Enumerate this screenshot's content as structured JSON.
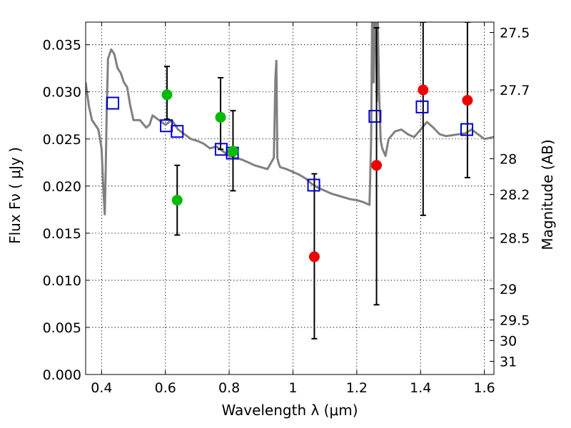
{
  "chart_data": {
    "type": "scatter",
    "title": "",
    "xlabel": "Wavelength  λ (μm)",
    "ylabel": "Flux  Fν  ( μJy )",
    "ylabel_right": "Magnitude (AB)",
    "xlim": [
      0.35,
      1.63
    ],
    "ylim": [
      0.0,
      0.0374
    ],
    "grid": true,
    "x_ticks": [
      0.4,
      0.6,
      0.8,
      1.0,
      1.2,
      1.4,
      1.6
    ],
    "x_tick_labels": [
      "0.4",
      "0.6",
      "0.8",
      "1",
      "1.2",
      "1.4",
      "1.6"
    ],
    "y_ticks": [
      0.0,
      0.005,
      0.01,
      0.015,
      0.02,
      0.025,
      0.03,
      0.035
    ],
    "y_tick_labels": [
      "0.000",
      "0.005",
      "0.010",
      "0.015",
      "0.020",
      "0.025",
      "0.030",
      "0.035"
    ],
    "right_ticks": [
      {
        "label": "27.5",
        "flux": 0.0363
      },
      {
        "label": "27.7",
        "flux": 0.0302
      },
      {
        "label": "28",
        "flux": 0.0229
      },
      {
        "label": "28.2",
        "flux": 0.0191
      },
      {
        "label": "28.5",
        "flux": 0.0145
      },
      {
        "label": "29",
        "flux": 0.0091
      },
      {
        "label": "29.5",
        "flux": 0.0058
      },
      {
        "label": "30",
        "flux": 0.0036
      },
      {
        "label": "31",
        "flux": 0.0014
      }
    ],
    "colors": {
      "model": "#808080",
      "model_photometry": "#0000cc",
      "green_points": "#00bb00",
      "red_points": "#ee0000",
      "errorbar": "#000000"
    },
    "model_spectrum": {
      "name": "",
      "x": [
        0.35,
        0.36,
        0.37,
        0.38,
        0.39,
        0.4,
        0.405,
        0.41,
        0.413,
        0.416,
        0.42,
        0.43,
        0.44,
        0.45,
        0.46,
        0.47,
        0.48,
        0.49,
        0.5,
        0.52,
        0.54,
        0.55,
        0.56,
        0.58,
        0.6,
        0.62,
        0.64,
        0.66,
        0.68,
        0.7,
        0.72,
        0.74,
        0.76,
        0.78,
        0.8,
        0.82,
        0.84,
        0.86,
        0.88,
        0.9,
        0.92,
        0.94,
        0.945,
        0.948,
        0.951,
        0.955,
        0.96,
        0.98,
        1.0,
        1.02,
        1.04,
        1.06,
        1.08,
        1.1,
        1.12,
        1.14,
        1.16,
        1.18,
        1.2,
        1.22,
        1.24,
        1.245,
        1.248,
        1.25,
        1.253,
        1.256,
        1.26,
        1.263,
        1.266,
        1.27,
        1.275,
        1.28,
        1.29,
        1.3,
        1.32,
        1.34,
        1.36,
        1.38,
        1.4,
        1.42,
        1.44,
        1.46,
        1.48,
        1.5,
        1.52,
        1.54,
        1.56,
        1.58,
        1.6,
        1.63
      ],
      "y": [
        0.031,
        0.0285,
        0.027,
        0.0265,
        0.026,
        0.024,
        0.02,
        0.017,
        0.022,
        0.028,
        0.0335,
        0.0345,
        0.034,
        0.0325,
        0.032,
        0.031,
        0.0305,
        0.0285,
        0.027,
        0.027,
        0.0262,
        0.0265,
        0.0275,
        0.027,
        0.0265,
        0.027,
        0.026,
        0.0255,
        0.025,
        0.0248,
        0.0245,
        0.024,
        0.0242,
        0.0237,
        0.0232,
        0.023,
        0.0228,
        0.0225,
        0.0222,
        0.022,
        0.0218,
        0.023,
        0.0315,
        0.0333,
        0.023,
        0.0224,
        0.022,
        0.0218,
        0.0215,
        0.0212,
        0.0208,
        0.0202,
        0.0198,
        0.0195,
        0.0192,
        0.019,
        0.0188,
        0.0186,
        0.0185,
        0.0183,
        0.018,
        0.025,
        0.0374,
        0.0374,
        0.031,
        0.0374,
        0.0374,
        0.029,
        0.0374,
        0.03,
        0.0248,
        0.024,
        0.0232,
        0.025,
        0.0258,
        0.026,
        0.0255,
        0.0252,
        0.026,
        0.0268,
        0.0262,
        0.0255,
        0.0253,
        0.0254,
        0.0255,
        0.0256,
        0.026,
        0.0255,
        0.025,
        0.0252
      ]
    },
    "model_photometry": {
      "name": "",
      "marker": "open-square",
      "x": [
        0.435,
        0.603,
        0.637,
        0.775,
        0.81,
        1.065,
        1.257,
        1.405,
        1.545
      ],
      "y": [
        0.0288,
        0.0264,
        0.0258,
        0.0239,
        0.0235,
        0.0201,
        0.0274,
        0.0284,
        0.026
      ]
    },
    "observed_green": {
      "name": "",
      "marker": "filled-circle",
      "x": [
        0.605,
        0.637,
        0.773,
        0.812
      ],
      "y": [
        0.0297,
        0.0185,
        0.0273,
        0.0237
      ],
      "err_low": [
        0.0026,
        0.0037,
        0.0034,
        0.0042
      ],
      "err_high": [
        0.003,
        0.0037,
        0.0042,
        0.0043
      ]
    },
    "observed_red": {
      "name": "",
      "marker": "filled-circle",
      "x": [
        1.067,
        1.262,
        1.408,
        1.547
      ],
      "y": [
        0.0125,
        0.0222,
        0.0302,
        0.0291
      ],
      "err_low": [
        0.0087,
        0.0148,
        0.0133,
        0.0082
      ],
      "err_high": [
        0.0088,
        0.0146,
        0.0072,
        0.0083
      ]
    }
  }
}
